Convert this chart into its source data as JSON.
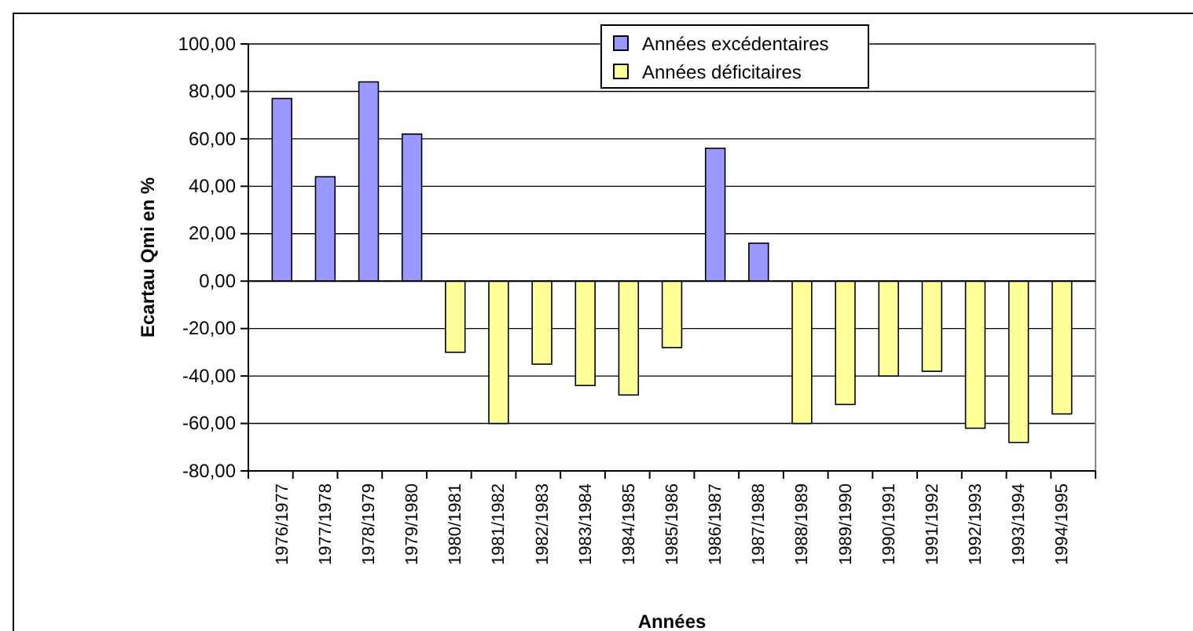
{
  "chart_data": {
    "type": "bar",
    "xlabel": "Années",
    "ylabel": "Ecartau Qmi en %",
    "categories": [
      "1976/1977",
      "1977/1978",
      "1978/1979",
      "1979/1980",
      "1980/1981",
      "1981/1982",
      "1982/1983",
      "1983/1984",
      "1984/1985",
      "1985/1986",
      "1986/1987",
      "1987/1988",
      "1988/1989",
      "1989/1990",
      "1990/1991",
      "1991/1992",
      "1992/1993",
      "1993/1994",
      "1994/1995"
    ],
    "series": [
      {
        "name": "Années excédentaires",
        "color": "#9999ff",
        "values": [
          77,
          44,
          84,
          62,
          null,
          null,
          null,
          null,
          null,
          null,
          56,
          16,
          null,
          null,
          null,
          null,
          null,
          null,
          null
        ]
      },
      {
        "name": "Années déficitaires",
        "color": "#ffff99",
        "values": [
          null,
          null,
          null,
          null,
          -30,
          -60,
          -35,
          -44,
          -48,
          -28,
          null,
          null,
          -60,
          -52,
          -40,
          -38,
          -62,
          -68,
          -56
        ]
      }
    ],
    "ylim": [
      -80,
      100
    ],
    "yticks": [
      {
        "value": -80,
        "label": "-80,00"
      },
      {
        "value": -60,
        "label": "-60,00"
      },
      {
        "value": -40,
        "label": "-40,00"
      },
      {
        "value": -20,
        "label": "-20,00"
      },
      {
        "value": 0,
        "label": "0,00"
      },
      {
        "value": 20,
        "label": "20,00"
      },
      {
        "value": 40,
        "label": "40,00"
      },
      {
        "value": 60,
        "label": "60,00"
      },
      {
        "value": 80,
        "label": "80,00"
      },
      {
        "value": 100,
        "label": "100,00"
      }
    ],
    "grid": "y",
    "legend": "top"
  }
}
